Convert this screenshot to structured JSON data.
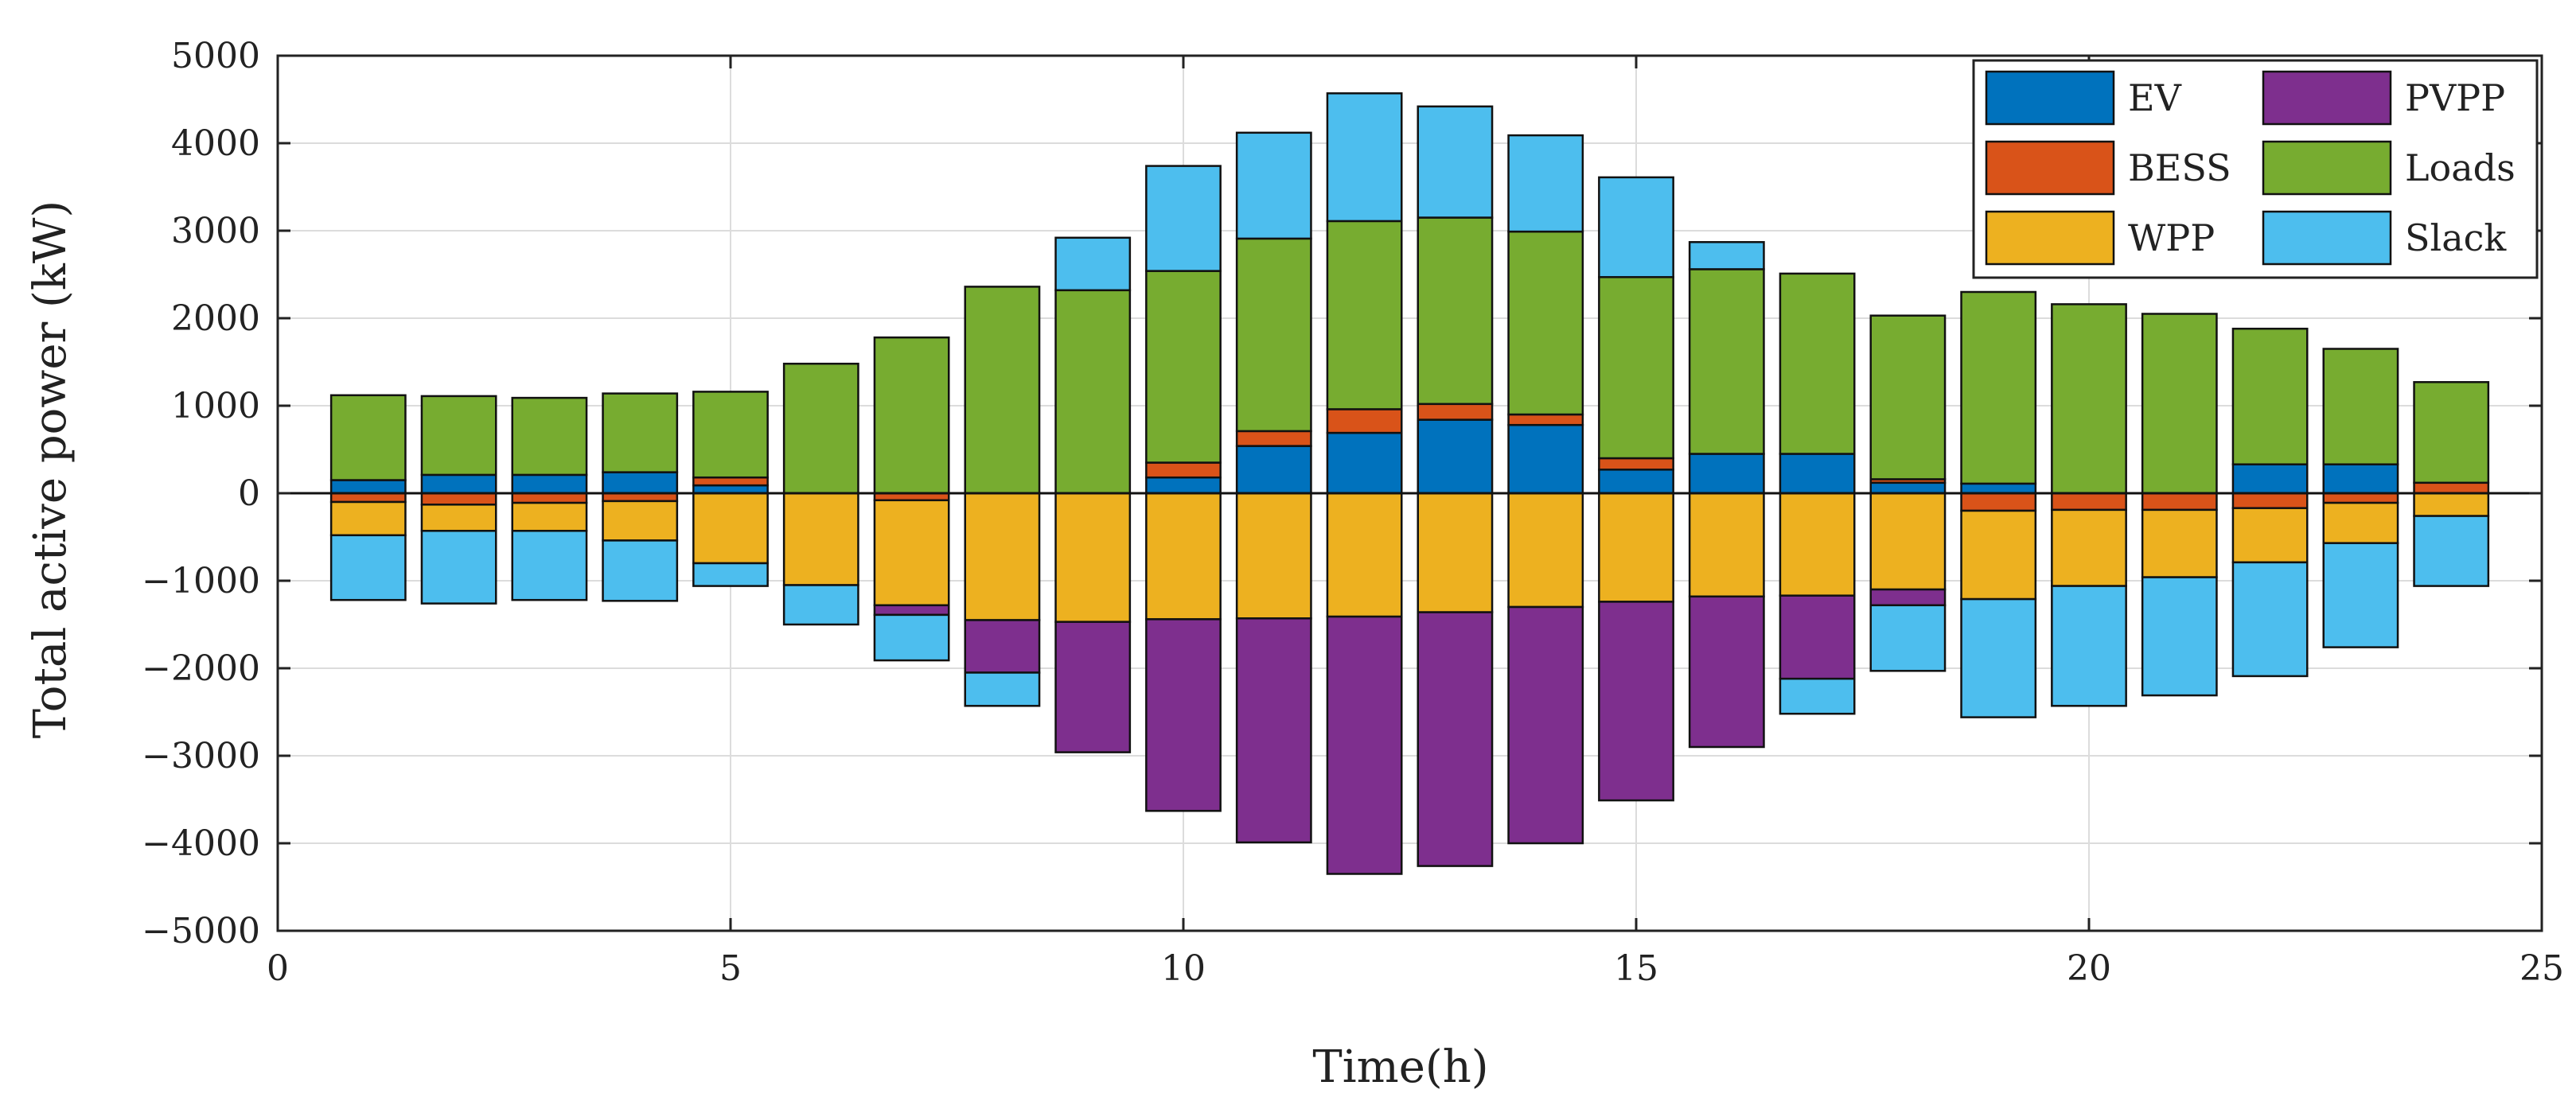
{
  "chart_data": {
    "type": "bar",
    "stacked": true,
    "title": "",
    "xlabel": "Time(h)",
    "ylabel": "Total active power (kW)",
    "xlim": [
      0,
      25
    ],
    "ylim": [
      -5000,
      5000
    ],
    "xticks": [
      0,
      5,
      10,
      15,
      20,
      25
    ],
    "yticks": [
      -5000,
      -4000,
      -3000,
      -2000,
      -1000,
      0,
      1000,
      2000,
      3000,
      4000,
      5000
    ],
    "xtick_labels": [
      "0",
      "5",
      "10",
      "15",
      "20",
      "25"
    ],
    "ytick_labels": [
      "−5000",
      "−4000",
      "−3000",
      "−2000",
      "−1000",
      "0",
      "1000",
      "2000",
      "3000",
      "4000",
      "5000"
    ],
    "grid": true,
    "legend_position": "top-right",
    "x": [
      1,
      2,
      3,
      4,
      5,
      6,
      7,
      8,
      9,
      10,
      11,
      12,
      13,
      14,
      15,
      16,
      17,
      18,
      19,
      20,
      21,
      22,
      23,
      24
    ],
    "series": [
      {
        "name": "EV",
        "color": "#0072BD",
        "values": [
          150,
          210,
          210,
          240,
          90,
          0,
          0,
          0,
          0,
          180,
          540,
          690,
          840,
          780,
          270,
          450,
          450,
          120,
          110,
          0,
          0,
          330,
          330,
          0
        ]
      },
      {
        "name": "BESS",
        "color": "#D95319",
        "values": [
          -100,
          -130,
          -110,
          -90,
          90,
          0,
          -80,
          0,
          0,
          170,
          170,
          270,
          180,
          120,
          130,
          0,
          0,
          40,
          -200,
          -190,
          -190,
          -170,
          -110,
          120
        ]
      },
      {
        "name": "WPP",
        "color": "#EDB120",
        "values": [
          -380,
          -300,
          -320,
          -450,
          -800,
          -1050,
          -1200,
          -1450,
          -1470,
          -1440,
          -1430,
          -1410,
          -1360,
          -1300,
          -1240,
          -1180,
          -1170,
          -1100,
          -1010,
          -870,
          -770,
          -620,
          -460,
          -260
        ]
      },
      {
        "name": "PVPP",
        "color": "#7E2F8E",
        "values": [
          0,
          0,
          0,
          0,
          0,
          0,
          -110,
          -600,
          -1490,
          -2190,
          -2560,
          -2940,
          -2900,
          -2700,
          -2270,
          -1720,
          -950,
          -180,
          0,
          0,
          0,
          0,
          0,
          0
        ]
      },
      {
        "name": "Loads",
        "color": "#77AC30",
        "values": [
          970,
          900,
          880,
          900,
          980,
          1480,
          1780,
          2360,
          2320,
          2190,
          2200,
          2150,
          2130,
          2090,
          2070,
          2110,
          2060,
          1870,
          2190,
          2160,
          2050,
          1550,
          1320,
          1150
        ]
      },
      {
        "name": "Slack",
        "color": "#4DBEEE",
        "values": [
          -740,
          -830,
          -790,
          -690,
          -260,
          -450,
          -520,
          -380,
          600,
          1200,
          1210,
          1460,
          1270,
          1100,
          1140,
          310,
          -400,
          -750,
          -1350,
          -1370,
          -1350,
          -1300,
          -1190,
          -800
        ]
      }
    ]
  }
}
